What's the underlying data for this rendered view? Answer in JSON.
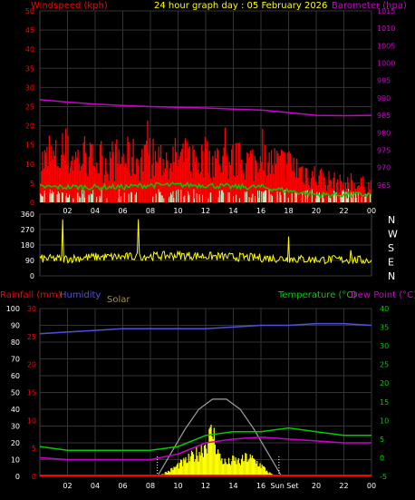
{
  "header": {
    "title": "24 hour graph day : 05 February 2026",
    "left_label": "Windspeed (kph)",
    "right_label": "Barometer (hpa)"
  },
  "colors": {
    "windspeed": "#ff0000",
    "gust_band": "#ff0000",
    "wind_avg": "#00cc00",
    "wind_low": "#c8f0c8",
    "barometer": "#cc00cc",
    "direction": "#ffff00",
    "rain": "#ff0000",
    "humidity": "#5050e0",
    "solar": "#ffff00",
    "solar_envelope": "#a0a0a0",
    "temperature": "#00cc00",
    "dewpoint": "#cc00cc",
    "grid": "#333333",
    "axis_text": "#ffffff"
  },
  "chart_data": [
    {
      "type": "line",
      "title": "24 hour graph day : 05 February 2026",
      "x_ticks": [
        "02",
        "04",
        "06",
        "08",
        "10",
        "12",
        "14",
        "16",
        "18",
        "20",
        "22",
        "00"
      ],
      "left_axis": {
        "label": "Windspeed (kph)",
        "ylim": [
          0,
          50
        ],
        "ticks": [
          "0",
          "5",
          "10",
          "15",
          "20",
          "25",
          "30",
          "35",
          "40",
          "45",
          "50"
        ]
      },
      "right_axis": {
        "label": "Barometer (hpa)",
        "ylim": [
          960,
          1015
        ],
        "ticks": [
          "965",
          "970",
          "975",
          "980",
          "985",
          "990",
          "995",
          "1000",
          "1005",
          "1010",
          "1015"
        ]
      },
      "series": [
        {
          "name": "Barometer",
          "axis": "right",
          "x": [
            0,
            2,
            4,
            6,
            8,
            10,
            12,
            14,
            16,
            18,
            20,
            22,
            24
          ],
          "values": [
            989.5,
            988.8,
            988.2,
            987.8,
            987.5,
            987.3,
            987.1,
            986.8,
            986.5,
            985.8,
            985.0,
            984.9,
            985.0
          ]
        },
        {
          "name": "Wind gust (upper)",
          "axis": "left",
          "x": [
            0,
            2,
            4,
            6,
            8,
            10,
            12,
            14,
            16,
            18,
            20,
            22,
            24
          ],
          "values": [
            14,
            16,
            14,
            15,
            15,
            15,
            15,
            14,
            14,
            13,
            9,
            6,
            6
          ]
        },
        {
          "name": "Wind average",
          "axis": "left",
          "x": [
            0,
            2,
            4,
            6,
            8,
            10,
            12,
            14,
            16,
            18,
            20,
            22,
            24
          ],
          "values": [
            4,
            4,
            4,
            4,
            4.5,
            4.5,
            4.5,
            4,
            4,
            3,
            2,
            2,
            2
          ]
        }
      ]
    },
    {
      "type": "line",
      "left_axis": {
        "ylim": [
          0,
          360
        ],
        "ticks": [
          "0",
          "90",
          "180",
          "270",
          "360"
        ]
      },
      "right_axis": {
        "ticks": [
          "N",
          "W",
          "S",
          "E",
          "N"
        ]
      },
      "series": [
        {
          "name": "Wind direction",
          "x": [
            0,
            2,
            4,
            6,
            8,
            10,
            12,
            14,
            16,
            18,
            20,
            22,
            24
          ],
          "values": [
            100,
            100,
            110,
            110,
            115,
            120,
            115,
            110,
            105,
            100,
            95,
            95,
            90
          ]
        }
      ]
    },
    {
      "type": "line",
      "labels": {
        "rainfall": "Rainfall (mm)",
        "humidity": "Humidity",
        "solar": "Solar",
        "temperature": "Temperature (°C)",
        "dewpoint": "Dew Point (°C)",
        "sun_set": "Sun Set"
      },
      "x_ticks": [
        "02",
        "04",
        "06",
        "08",
        "10",
        "12",
        "14",
        "16",
        "18",
        "20",
        "22",
        "00"
      ],
      "humidity_axis": {
        "ylim": [
          0,
          100
        ],
        "ticks": [
          "0",
          "10",
          "20",
          "30",
          "40",
          "50",
          "60",
          "70",
          "80",
          "90",
          "100"
        ]
      },
      "rain_axis": {
        "ylim": [
          0,
          30
        ],
        "ticks": [
          "0",
          "5",
          "10",
          "15",
          "20",
          "25",
          "30"
        ]
      },
      "temp_axis": {
        "ylim": [
          -5,
          40
        ],
        "ticks": [
          "-5",
          "0",
          "5",
          "10",
          "15",
          "20",
          "25",
          "30",
          "35",
          "40"
        ]
      },
      "series": [
        {
          "name": "Humidity",
          "axis": "humidity",
          "x": [
            0,
            2,
            4,
            6,
            8,
            10,
            12,
            14,
            16,
            18,
            20,
            22,
            24
          ],
          "values": [
            85,
            86,
            87,
            88,
            88,
            88,
            88,
            89,
            90,
            90,
            91,
            91,
            90
          ]
        },
        {
          "name": "Temperature",
          "axis": "temp",
          "x": [
            0,
            2,
            4,
            6,
            8,
            10,
            12,
            14,
            16,
            18,
            20,
            22,
            24
          ],
          "values": [
            3,
            2,
            2,
            2,
            2,
            3,
            6,
            7,
            7,
            8,
            7,
            6,
            6
          ]
        },
        {
          "name": "Dew Point",
          "axis": "temp",
          "x": [
            0,
            2,
            4,
            6,
            8,
            10,
            12,
            14,
            16,
            18,
            20,
            22,
            24
          ],
          "values": [
            0,
            -0.5,
            -0.5,
            -0.5,
            -0.5,
            1,
            4,
            5,
            5.5,
            5,
            4.5,
            4,
            4
          ]
        },
        {
          "name": "Rainfall",
          "axis": "rain",
          "x": [
            0,
            24
          ],
          "values": [
            0,
            0
          ]
        },
        {
          "name": "Solar",
          "axis": "humidity",
          "x": [
            8.5,
            9,
            9.5,
            10,
            10.5,
            11,
            11.5,
            12,
            12.5,
            13,
            13.5,
            14,
            14.5,
            15,
            15.5,
            16,
            16.5,
            17
          ],
          "values": [
            0,
            2,
            4,
            7,
            9,
            12,
            15,
            20,
            28,
            12,
            8,
            10,
            9,
            12,
            10,
            7,
            3,
            0
          ]
        },
        {
          "name": "Solar max",
          "axis": "humidity",
          "x": [
            8.5,
            9.5,
            10.5,
            11.5,
            12.5,
            13.5,
            14.5,
            15.5,
            16.5,
            17.5
          ],
          "values": [
            0,
            14,
            28,
            40,
            46,
            46,
            40,
            28,
            14,
            0
          ]
        }
      ]
    }
  ]
}
